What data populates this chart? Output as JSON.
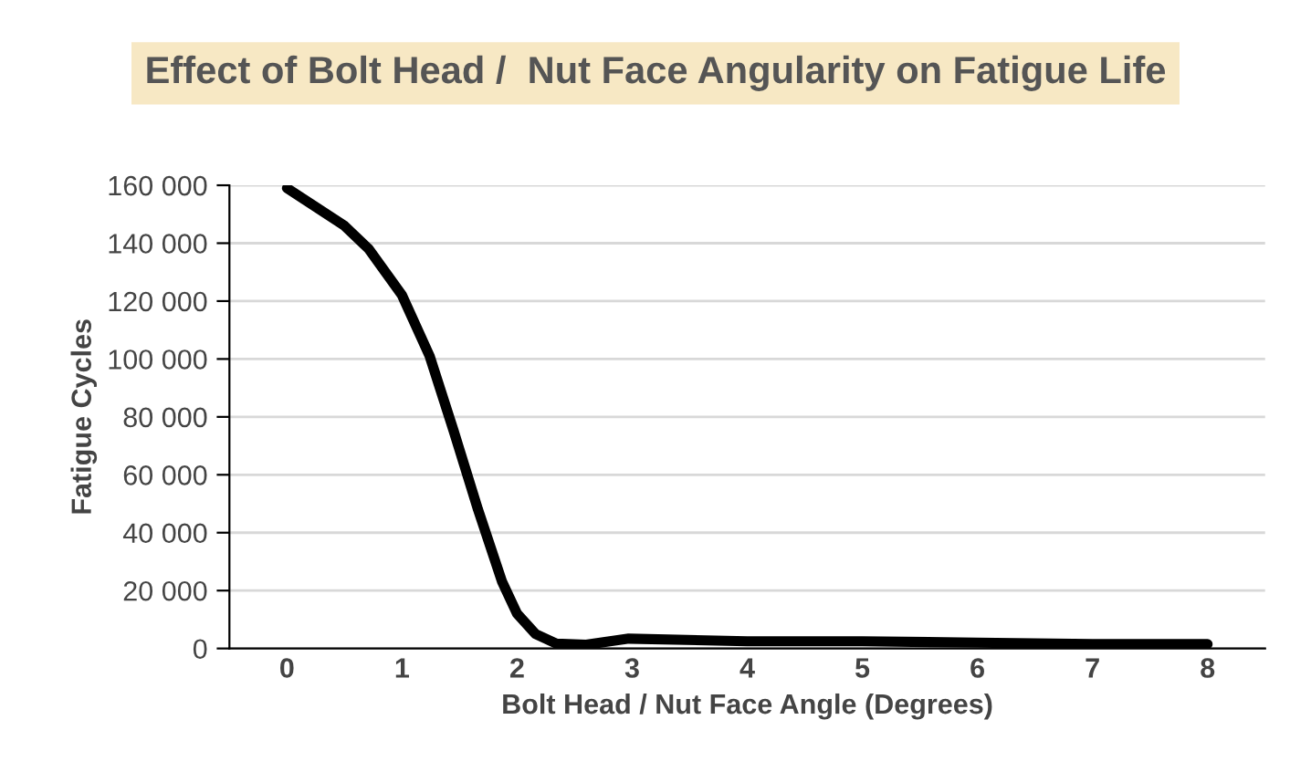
{
  "chart_data": {
    "type": "line",
    "title": "Effect of Bolt Head /  Nut Face Angularity on Fatigue Life",
    "xlabel": "Bolt Head / Nut Face Angle (Degrees)",
    "ylabel": "Fatigue Cycles",
    "x": [
      0,
      0.5,
      0.71,
      1.0,
      1.24,
      1.45,
      1.66,
      1.87,
      2.0,
      2.16,
      2.34,
      2.6,
      2.97,
      4,
      5,
      6,
      7,
      8
    ],
    "series": [
      {
        "color": "#000000",
        "values": [
          159000,
          146000,
          138000,
          122000,
          101000,
          75000,
          48000,
          23000,
          12000,
          5000,
          1700,
          1300,
          3400,
          2500,
          2500,
          2000,
          1500,
          1500
        ]
      }
    ],
    "xlim": [
      -0.5,
      8.5
    ],
    "xticks": [
      0,
      1,
      2,
      3,
      4,
      5,
      6,
      7,
      8
    ],
    "ylim": [
      0,
      160000
    ],
    "yticks": [
      {
        "value": 0,
        "label": "0"
      },
      {
        "value": 20000,
        "label": "20 000"
      },
      {
        "value": 40000,
        "label": "40 000"
      },
      {
        "value": 60000,
        "label": "60 000"
      },
      {
        "value": 80000,
        "label": "80 000"
      },
      {
        "value": 100000,
        "label": "100 000"
      },
      {
        "value": 120000,
        "label": "120 000"
      },
      {
        "value": 140000,
        "label": "140 000"
      },
      {
        "value": 160000,
        "label": "160 000"
      }
    ],
    "grid": "y",
    "marker": "none",
    "line_style": "solid"
  }
}
